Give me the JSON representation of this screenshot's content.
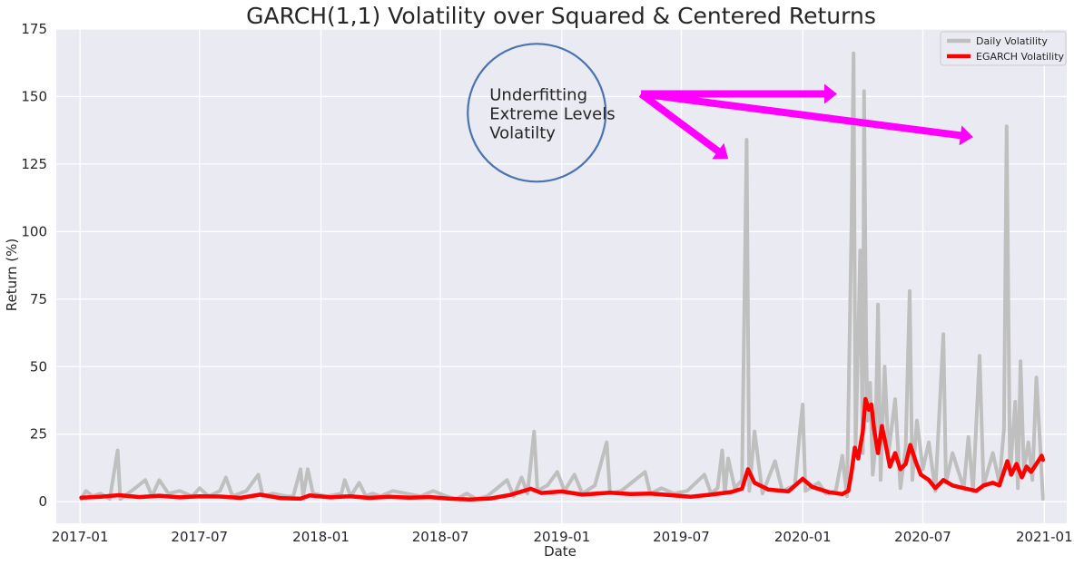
{
  "chart_data": {
    "type": "line",
    "title": "GARCH(1,1) Volatility over Squared & Centered Returns",
    "xlabel": "Date",
    "ylabel": "Return (%)",
    "xlim": [
      "2016-11-26",
      "2021-02-04"
    ],
    "ylim": [
      -8,
      175
    ],
    "x_ticks": [
      "2017-01",
      "2017-07",
      "2018-01",
      "2018-07",
      "2019-01",
      "2019-07",
      "2020-01",
      "2020-07",
      "2021-01"
    ],
    "y_ticks": [
      0,
      25,
      50,
      75,
      100,
      125,
      150,
      175
    ],
    "grid": true,
    "legend_position": "top-right",
    "series": [
      {
        "name": "Daily Volatility",
        "color": "#bfbfbf",
        "points": [
          [
            "2017-01-03",
            1
          ],
          [
            "2017-01-10",
            4
          ],
          [
            "2017-01-20",
            2
          ],
          [
            "2017-02-01",
            3
          ],
          [
            "2017-02-15",
            1
          ],
          [
            "2017-02-27",
            19
          ],
          [
            "2017-03-03",
            1
          ],
          [
            "2017-03-20",
            4
          ],
          [
            "2017-04-10",
            8
          ],
          [
            "2017-04-20",
            2
          ],
          [
            "2017-05-01",
            8
          ],
          [
            "2017-05-15",
            3
          ],
          [
            "2017-06-01",
            4
          ],
          [
            "2017-06-20",
            2
          ],
          [
            "2017-07-01",
            5
          ],
          [
            "2017-07-15",
            2
          ],
          [
            "2017-08-01",
            4
          ],
          [
            "2017-08-10",
            9
          ],
          [
            "2017-08-20",
            2
          ],
          [
            "2017-09-10",
            4
          ],
          [
            "2017-09-28",
            10
          ],
          [
            "2017-10-05",
            2
          ],
          [
            "2017-10-20",
            3
          ],
          [
            "2017-11-10",
            2
          ],
          [
            "2017-11-20",
            2
          ],
          [
            "2017-12-01",
            12
          ],
          [
            "2017-12-05",
            2
          ],
          [
            "2017-12-12",
            12
          ],
          [
            "2017-12-20",
            3
          ],
          [
            "2018-01-10",
            2
          ],
          [
            "2018-02-01",
            3
          ],
          [
            "2018-02-06",
            8
          ],
          [
            "2018-02-15",
            2
          ],
          [
            "2018-02-28",
            7
          ],
          [
            "2018-03-10",
            2
          ],
          [
            "2018-03-20",
            3
          ],
          [
            "2018-04-01",
            2
          ],
          [
            "2018-04-20",
            4
          ],
          [
            "2018-05-10",
            3
          ],
          [
            "2018-06-01",
            2
          ],
          [
            "2018-06-20",
            4
          ],
          [
            "2018-07-10",
            2
          ],
          [
            "2018-07-25",
            1
          ],
          [
            "2018-08-10",
            3
          ],
          [
            "2018-08-25",
            1
          ],
          [
            "2018-09-10",
            2
          ],
          [
            "2018-09-25",
            5
          ],
          [
            "2018-10-10",
            8
          ],
          [
            "2018-10-20",
            2
          ],
          [
            "2018-11-01",
            9
          ],
          [
            "2018-11-10",
            3
          ],
          [
            "2018-11-20",
            26
          ],
          [
            "2018-11-25",
            4
          ],
          [
            "2018-12-10",
            6
          ],
          [
            "2018-12-25",
            11
          ],
          [
            "2019-01-05",
            4
          ],
          [
            "2019-01-20",
            10
          ],
          [
            "2019-02-01",
            3
          ],
          [
            "2019-02-20",
            6
          ],
          [
            "2019-03-10",
            22
          ],
          [
            "2019-03-15",
            3
          ],
          [
            "2019-04-01",
            4
          ],
          [
            "2019-05-07",
            11
          ],
          [
            "2019-05-15",
            3
          ],
          [
            "2019-06-01",
            5
          ],
          [
            "2019-06-20",
            3
          ],
          [
            "2019-07-10",
            4
          ],
          [
            "2019-08-05",
            10
          ],
          [
            "2019-08-15",
            3
          ],
          [
            "2019-08-25",
            5
          ],
          [
            "2019-09-01",
            19
          ],
          [
            "2019-09-05",
            3
          ],
          [
            "2019-09-10",
            16
          ],
          [
            "2019-09-20",
            5
          ],
          [
            "2019-10-01",
            8
          ],
          [
            "2019-10-08",
            134
          ],
          [
            "2019-10-12",
            4
          ],
          [
            "2019-10-20",
            26
          ],
          [
            "2019-11-01",
            3
          ],
          [
            "2019-11-20",
            15
          ],
          [
            "2019-12-01",
            4
          ],
          [
            "2019-12-20",
            6
          ],
          [
            "2019-12-28",
            27
          ],
          [
            "2020-01-01",
            36
          ],
          [
            "2020-01-05",
            4
          ],
          [
            "2020-01-25",
            7
          ],
          [
            "2020-02-05",
            3
          ],
          [
            "2020-02-20",
            4
          ],
          [
            "2020-03-01",
            17
          ],
          [
            "2020-03-08",
            2
          ],
          [
            "2020-03-15",
            104
          ],
          [
            "2020-03-18",
            166
          ],
          [
            "2020-03-21",
            20
          ],
          [
            "2020-03-25",
            60
          ],
          [
            "2020-03-28",
            93
          ],
          [
            "2020-04-01",
            18
          ],
          [
            "2020-04-03",
            152
          ],
          [
            "2020-04-06",
            60
          ],
          [
            "2020-04-08",
            30
          ],
          [
            "2020-04-12",
            44
          ],
          [
            "2020-04-16",
            10
          ],
          [
            "2020-04-20",
            20
          ],
          [
            "2020-04-24",
            73
          ],
          [
            "2020-04-28",
            8
          ],
          [
            "2020-05-04",
            50
          ],
          [
            "2020-05-10",
            18
          ],
          [
            "2020-05-20",
            38
          ],
          [
            "2020-05-28",
            5
          ],
          [
            "2020-06-05",
            20
          ],
          [
            "2020-06-11",
            78
          ],
          [
            "2020-06-15",
            8
          ],
          [
            "2020-06-22",
            30
          ],
          [
            "2020-07-01",
            12
          ],
          [
            "2020-07-10",
            22
          ],
          [
            "2020-07-20",
            4
          ],
          [
            "2020-08-01",
            62
          ],
          [
            "2020-08-05",
            7
          ],
          [
            "2020-08-15",
            18
          ],
          [
            "2020-09-01",
            5
          ],
          [
            "2020-09-08",
            24
          ],
          [
            "2020-09-15",
            4
          ],
          [
            "2020-09-25",
            54
          ],
          [
            "2020-10-01",
            6
          ],
          [
            "2020-10-15",
            18
          ],
          [
            "2020-10-25",
            7
          ],
          [
            "2020-11-01",
            27
          ],
          [
            "2020-11-05",
            139
          ],
          [
            "2020-11-10",
            10
          ],
          [
            "2020-11-18",
            37
          ],
          [
            "2020-11-22",
            5
          ],
          [
            "2020-11-26",
            52
          ],
          [
            "2020-12-01",
            12
          ],
          [
            "2020-12-08",
            22
          ],
          [
            "2020-12-14",
            8
          ],
          [
            "2020-12-20",
            46
          ],
          [
            "2020-12-25",
            24
          ],
          [
            "2020-12-30",
            1
          ]
        ]
      },
      {
        "name": "EGARCH Volatility",
        "color": "#ff0000",
        "points": [
          [
            "2017-01-03",
            1.5
          ],
          [
            "2017-02-01",
            1.8
          ],
          [
            "2017-03-01",
            2.4
          ],
          [
            "2017-04-01",
            1.7
          ],
          [
            "2017-05-01",
            2.2
          ],
          [
            "2017-06-01",
            1.6
          ],
          [
            "2017-07-01",
            2.0
          ],
          [
            "2017-08-01",
            1.9
          ],
          [
            "2017-09-01",
            1.4
          ],
          [
            "2017-10-01",
            2.6
          ],
          [
            "2017-11-01",
            1.3
          ],
          [
            "2017-12-01",
            1.1
          ],
          [
            "2017-12-15",
            2.3
          ],
          [
            "2018-01-15",
            1.6
          ],
          [
            "2018-02-15",
            2.0
          ],
          [
            "2018-03-15",
            1.4
          ],
          [
            "2018-04-15",
            1.8
          ],
          [
            "2018-05-15",
            1.5
          ],
          [
            "2018-06-15",
            1.7
          ],
          [
            "2018-07-15",
            1.1
          ],
          [
            "2018-08-15",
            0.8
          ],
          [
            "2018-09-15",
            1.2
          ],
          [
            "2018-10-15",
            2.5
          ],
          [
            "2018-11-15",
            4.8
          ],
          [
            "2018-12-01",
            3.2
          ],
          [
            "2019-01-01",
            3.8
          ],
          [
            "2019-02-01",
            2.6
          ],
          [
            "2019-03-15",
            3.3
          ],
          [
            "2019-04-15",
            2.8
          ],
          [
            "2019-05-15",
            3.0
          ],
          [
            "2019-06-15",
            2.4
          ],
          [
            "2019-07-15",
            1.8
          ],
          [
            "2019-08-15",
            2.6
          ],
          [
            "2019-09-15",
            3.6
          ],
          [
            "2019-10-01",
            4.8
          ],
          [
            "2019-10-10",
            12
          ],
          [
            "2019-10-20",
            7
          ],
          [
            "2019-11-10",
            4.5
          ],
          [
            "2019-12-10",
            3.8
          ],
          [
            "2020-01-01",
            8.5
          ],
          [
            "2020-01-15",
            5.5
          ],
          [
            "2020-02-10",
            3.5
          ],
          [
            "2020-03-01",
            2.8
          ],
          [
            "2020-03-10",
            4
          ],
          [
            "2020-03-15",
            11
          ],
          [
            "2020-03-20",
            20
          ],
          [
            "2020-03-25",
            16
          ],
          [
            "2020-04-01",
            26
          ],
          [
            "2020-04-05",
            38
          ],
          [
            "2020-04-10",
            34
          ],
          [
            "2020-04-14",
            36
          ],
          [
            "2020-04-18",
            27
          ],
          [
            "2020-04-24",
            18
          ],
          [
            "2020-04-30",
            28
          ],
          [
            "2020-05-05",
            22
          ],
          [
            "2020-05-12",
            13
          ],
          [
            "2020-05-20",
            18
          ],
          [
            "2020-05-28",
            12
          ],
          [
            "2020-06-05",
            14
          ],
          [
            "2020-06-12",
            21
          ],
          [
            "2020-06-20",
            15
          ],
          [
            "2020-06-28",
            10
          ],
          [
            "2020-07-10",
            8
          ],
          [
            "2020-07-20",
            5
          ],
          [
            "2020-08-01",
            8
          ],
          [
            "2020-08-15",
            6
          ],
          [
            "2020-09-01",
            5
          ],
          [
            "2020-09-20",
            4
          ],
          [
            "2020-10-01",
            6
          ],
          [
            "2020-10-15",
            7
          ],
          [
            "2020-10-25",
            6
          ],
          [
            "2020-11-06",
            15
          ],
          [
            "2020-11-12",
            10
          ],
          [
            "2020-11-20",
            14
          ],
          [
            "2020-11-28",
            9
          ],
          [
            "2020-12-05",
            13
          ],
          [
            "2020-12-12",
            11
          ],
          [
            "2020-12-20",
            14
          ],
          [
            "2020-12-28",
            17
          ],
          [
            "2020-12-30",
            15.5
          ]
        ]
      }
    ],
    "annotations": {
      "text_lines": [
        "Underfitting",
        "Extreme Levels",
        "Volatilty"
      ],
      "circle_color": "#4c72b0",
      "arrow_color": "#ff00ff",
      "circle_center": [
        "2018-11-24",
        144
      ],
      "arrow_origin": [
        "2019-05-01",
        151
      ],
      "arrow_targets": [
        [
          "2020-02-22",
          151
        ],
        [
          "2020-09-15",
          135
        ],
        [
          "2019-09-10",
          127
        ]
      ]
    }
  },
  "colors": {
    "plot_background": "#eaeaf2",
    "grid": "#ffffff"
  }
}
